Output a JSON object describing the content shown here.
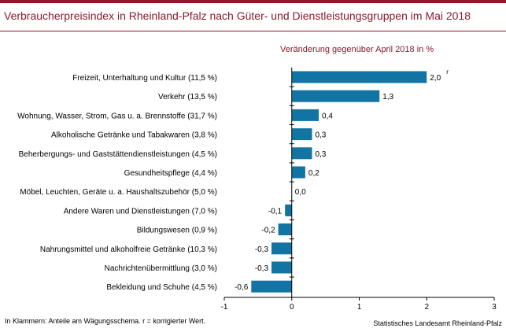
{
  "header": {
    "title": "Verbraucherpreisindex in Rheinland-Pfalz nach Güter- und Dienstleistungsgruppen im Mai 2018",
    "subtitle": "Veränderung gegenüber April 2018 in %"
  },
  "footer": {
    "note": "In Klammern: Anteile am Wägungsschema. r = korrigierter Wert.",
    "source": "Statistisches Landesamt Rheinland-Pfalz"
  },
  "colors": {
    "accent": "#8b1a2b",
    "bar": "#1274a3"
  },
  "chart_data": {
    "type": "bar",
    "orientation": "horizontal",
    "categories": [
      "Freizeit, Unterhaltung und Kultur (11,5 %)",
      "Verkehr (13,5 %)",
      "Wohnung, Wasser, Strom, Gas u. a. Brennstoffe (31,7 %)",
      "Alkoholische Getränke und Tabakwaren (3,8 %)",
      "Beherbergungs- und Gaststättendienstleistungen (4,5 %)",
      "Gesundheitspflege (4,4 %)",
      "Möbel, Leuchten, Geräte u. a. Haushaltszubehör (5,0 %)",
      "Andere Waren und Dienstleistungen (7,0 %)",
      "Bildungswesen (0,9 %)",
      "Nahrungsmittel und alkoholfreie Getränke (10,3 %)",
      "Nachrichtenübermittlung (3,0 %)",
      "Bekleidung und Schuhe (4,5 %)"
    ],
    "values": [
      2.0,
      1.3,
      0.4,
      0.3,
      0.3,
      0.2,
      0.0,
      -0.1,
      -0.2,
      -0.3,
      -0.3,
      -0.6
    ],
    "labels": [
      "2,0",
      "1,3",
      "0,4",
      "0,3",
      "0,3",
      "0,2",
      "0,0",
      "-0,1",
      "-0,2",
      "-0,3",
      "-0,3",
      "-0,6"
    ],
    "annotations": [
      {
        "category_index": 0,
        "text": "r"
      }
    ],
    "xlim": [
      -1,
      3
    ],
    "xticks": [
      -1,
      0,
      1,
      2,
      3
    ],
    "xtick_labels": [
      "-1",
      "0",
      "1",
      "2",
      "3"
    ],
    "grid": false,
    "legend": "none"
  }
}
